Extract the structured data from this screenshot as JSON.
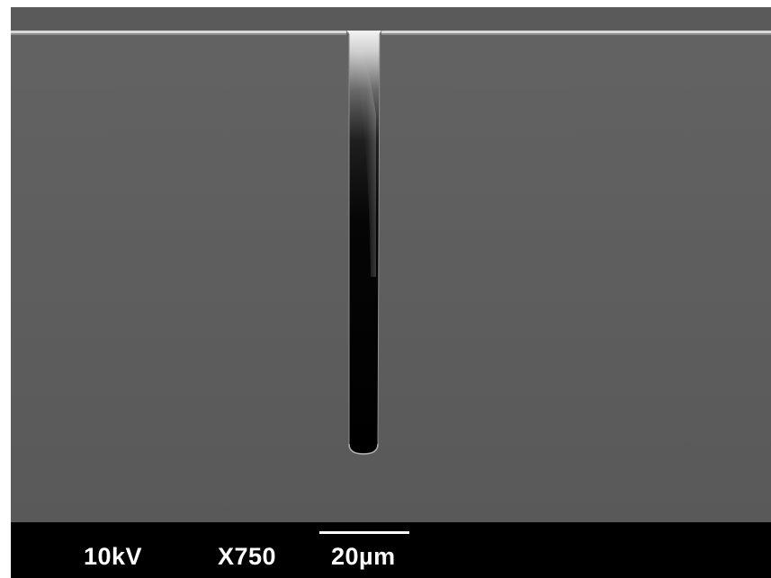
{
  "micrograph": {
    "accelerating_voltage": "10kV",
    "magnification": "X750",
    "scale_bar_label": "20µm",
    "colors": {
      "background_surface": "#5f5f5f",
      "trench_interior": "#000000",
      "edge_highlight": "#e8e8e8",
      "info_bar": "#000000",
      "info_text": "#ffffff"
    }
  }
}
